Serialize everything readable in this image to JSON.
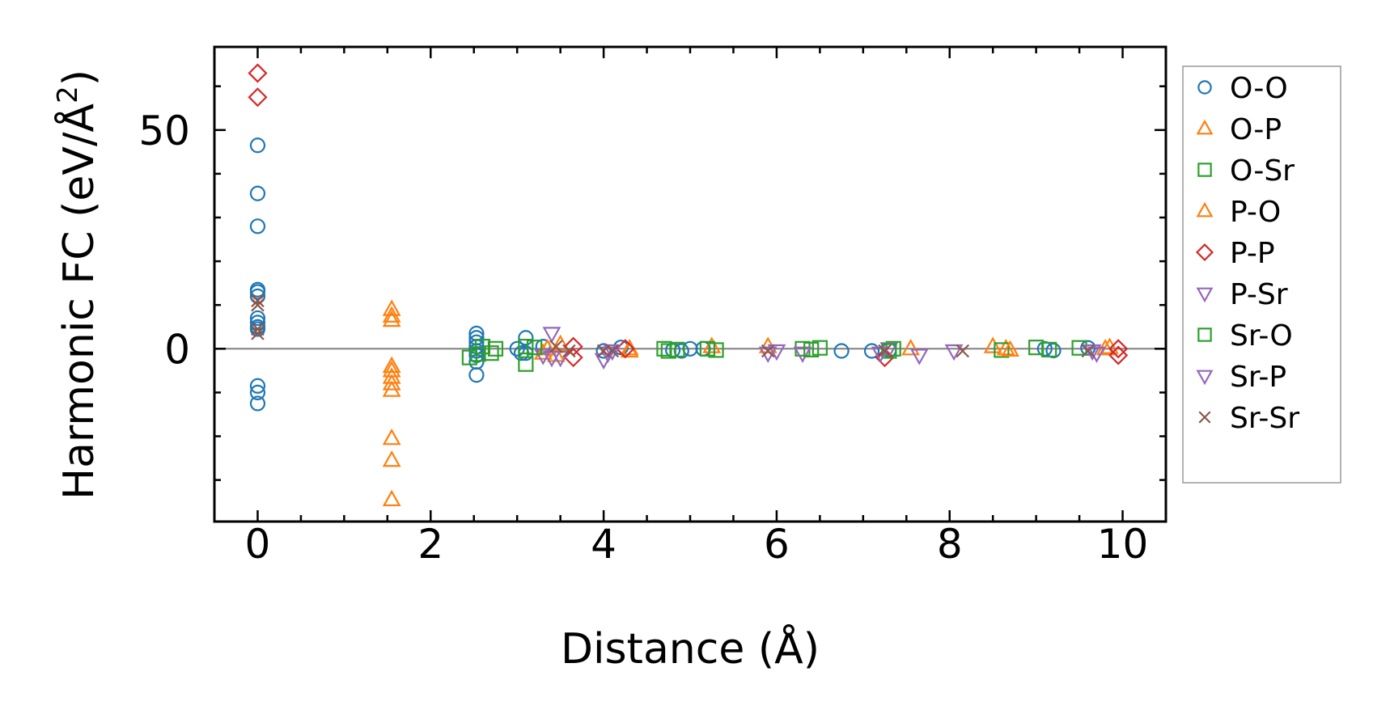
{
  "chart_data": {
    "type": "scatter",
    "title": "",
    "xlabel": "Distance (Å)",
    "ylabel_main": "Harmonic FC (eV/Å",
    "ylabel_sup": "2",
    "ylabel_close": ")",
    "xlim": [
      -0.5,
      10.5
    ],
    "ylim": [
      -39.5,
      69
    ],
    "xticks": [
      0,
      2,
      4,
      6,
      8,
      10
    ],
    "xtick_labels": [
      "0",
      "2",
      "4",
      "6",
      "8",
      "10"
    ],
    "yticks": [
      0,
      50
    ],
    "ytick_labels": [
      "0",
      "50"
    ],
    "x_minor_step": 0.5,
    "y_minor_step": 10,
    "zero_line": true,
    "grid": false,
    "legend_position": "right-outside",
    "series": [
      {
        "name": "O-O",
        "marker": "circle",
        "color": "#1f77b4",
        "points": [
          [
            0,
            46.5
          ],
          [
            0,
            35.5
          ],
          [
            0,
            28
          ],
          [
            0,
            13.5
          ],
          [
            0,
            13
          ],
          [
            0,
            12
          ],
          [
            0,
            7
          ],
          [
            0,
            6
          ],
          [
            0,
            5
          ],
          [
            0,
            4.5
          ],
          [
            0,
            -8.5
          ],
          [
            0,
            -10
          ],
          [
            0,
            -12.5
          ],
          [
            2.53,
            3.5
          ],
          [
            2.53,
            2.5
          ],
          [
            2.53,
            1.5
          ],
          [
            2.53,
            0.5
          ],
          [
            2.53,
            -0.5
          ],
          [
            2.53,
            -1.5
          ],
          [
            2.53,
            -3
          ],
          [
            2.53,
            -6
          ],
          [
            3.0,
            0
          ],
          [
            3.05,
            -1
          ],
          [
            3.1,
            2.5
          ],
          [
            3.1,
            -1
          ],
          [
            3.3,
            0.5
          ],
          [
            4.0,
            -0.5
          ],
          [
            4.2,
            0.3
          ],
          [
            4.8,
            -0.3
          ],
          [
            4.9,
            -0.5
          ],
          [
            5.0,
            0
          ],
          [
            5.15,
            0
          ],
          [
            6.75,
            -0.5
          ],
          [
            7.1,
            -0.5
          ],
          [
            7.3,
            -0.3
          ],
          [
            9.1,
            0
          ],
          [
            9.2,
            -0.4
          ],
          [
            9.6,
            0.2
          ]
        ]
      },
      {
        "name": "O-P",
        "marker": "triangle-up",
        "color": "#ff7f0e",
        "points": [
          [
            1.55,
            9
          ],
          [
            1.55,
            7.5
          ],
          [
            1.55,
            6.5
          ],
          [
            1.55,
            -4
          ],
          [
            1.55,
            -5
          ],
          [
            1.55,
            -6.5
          ],
          [
            1.55,
            -8
          ],
          [
            1.55,
            -9.5
          ],
          [
            1.55,
            -20.5
          ],
          [
            1.55,
            -25.5
          ],
          [
            1.55,
            -34.5
          ],
          [
            3.35,
            0
          ],
          [
            3.45,
            -1.5
          ],
          [
            4.3,
            0
          ],
          [
            5.25,
            0.5
          ],
          [
            5.9,
            0.5
          ],
          [
            7.55,
            0
          ],
          [
            8.5,
            0.5
          ],
          [
            8.65,
            0
          ],
          [
            9.8,
            0
          ]
        ]
      },
      {
        "name": "O-Sr",
        "marker": "square",
        "color": "#2ca02c",
        "points": [
          [
            2.45,
            -2
          ],
          [
            2.55,
            -1.2
          ],
          [
            2.6,
            0.5
          ],
          [
            2.7,
            -1
          ],
          [
            3.1,
            -3.5
          ],
          [
            3.1,
            0.5
          ],
          [
            4.7,
            0
          ],
          [
            4.75,
            -0.5
          ],
          [
            5.2,
            0
          ],
          [
            5.3,
            -0.3
          ],
          [
            6.3,
            0
          ],
          [
            6.5,
            0.2
          ],
          [
            7.35,
            0
          ],
          [
            8.6,
            -0.3
          ],
          [
            9.0,
            0.3
          ],
          [
            9.5,
            0.2
          ]
        ]
      },
      {
        "name": "P-O",
        "marker": "triangle-up",
        "color": "#ff7f0e",
        "points": [
          [
            3.3,
            -1
          ],
          [
            3.5,
            1
          ],
          [
            4.3,
            -0.5
          ],
          [
            8.7,
            -0.3
          ],
          [
            9.85,
            0.3
          ]
        ]
      },
      {
        "name": "P-P",
        "marker": "diamond",
        "color": "#d62728",
        "points": [
          [
            0,
            63
          ],
          [
            0,
            57.5
          ],
          [
            3.65,
            0.5
          ],
          [
            3.65,
            -2
          ],
          [
            4.25,
            0
          ],
          [
            7.25,
            -2
          ],
          [
            9.95,
            0
          ],
          [
            9.95,
            -1.5
          ]
        ]
      },
      {
        "name": "P-Sr",
        "marker": "triangle-down",
        "color": "#9467bd",
        "points": [
          [
            3.4,
            3.5
          ],
          [
            3.3,
            -1.5
          ],
          [
            3.5,
            -2
          ],
          [
            4.0,
            -2.5
          ],
          [
            4.05,
            -1
          ],
          [
            6.0,
            -0.5
          ],
          [
            6.3,
            -1
          ],
          [
            7.3,
            0
          ],
          [
            7.65,
            -1.5
          ],
          [
            8.05,
            -0.5
          ],
          [
            9.65,
            -0.5
          ]
        ]
      },
      {
        "name": "Sr-O",
        "marker": "square",
        "color": "#2ca02c",
        "points": [
          [
            2.75,
            0
          ],
          [
            3.2,
            0.3
          ],
          [
            4.85,
            -0.2
          ],
          [
            6.4,
            -0.2
          ],
          [
            7.3,
            -0.5
          ],
          [
            9.15,
            -0.2
          ]
        ]
      },
      {
        "name": "Sr-P",
        "marker": "triangle-down",
        "color": "#9467bd",
        "points": [
          [
            3.4,
            -2
          ],
          [
            4.1,
            -0.5
          ],
          [
            5.9,
            -1
          ],
          [
            7.2,
            -1
          ],
          [
            9.7,
            -1
          ]
        ]
      },
      {
        "name": "Sr-Sr",
        "marker": "x",
        "color": "#8c564b",
        "points": [
          [
            0,
            11
          ],
          [
            0,
            10
          ],
          [
            0,
            4.5
          ],
          [
            0,
            3.5
          ],
          [
            3.45,
            0.5
          ],
          [
            3.6,
            -0.5
          ],
          [
            4.0,
            -0.5
          ],
          [
            4.1,
            -0.5
          ],
          [
            5.9,
            -0.5
          ],
          [
            7.25,
            -0.5
          ],
          [
            8.15,
            -0.5
          ],
          [
            9.6,
            -0.5
          ]
        ]
      }
    ]
  }
}
